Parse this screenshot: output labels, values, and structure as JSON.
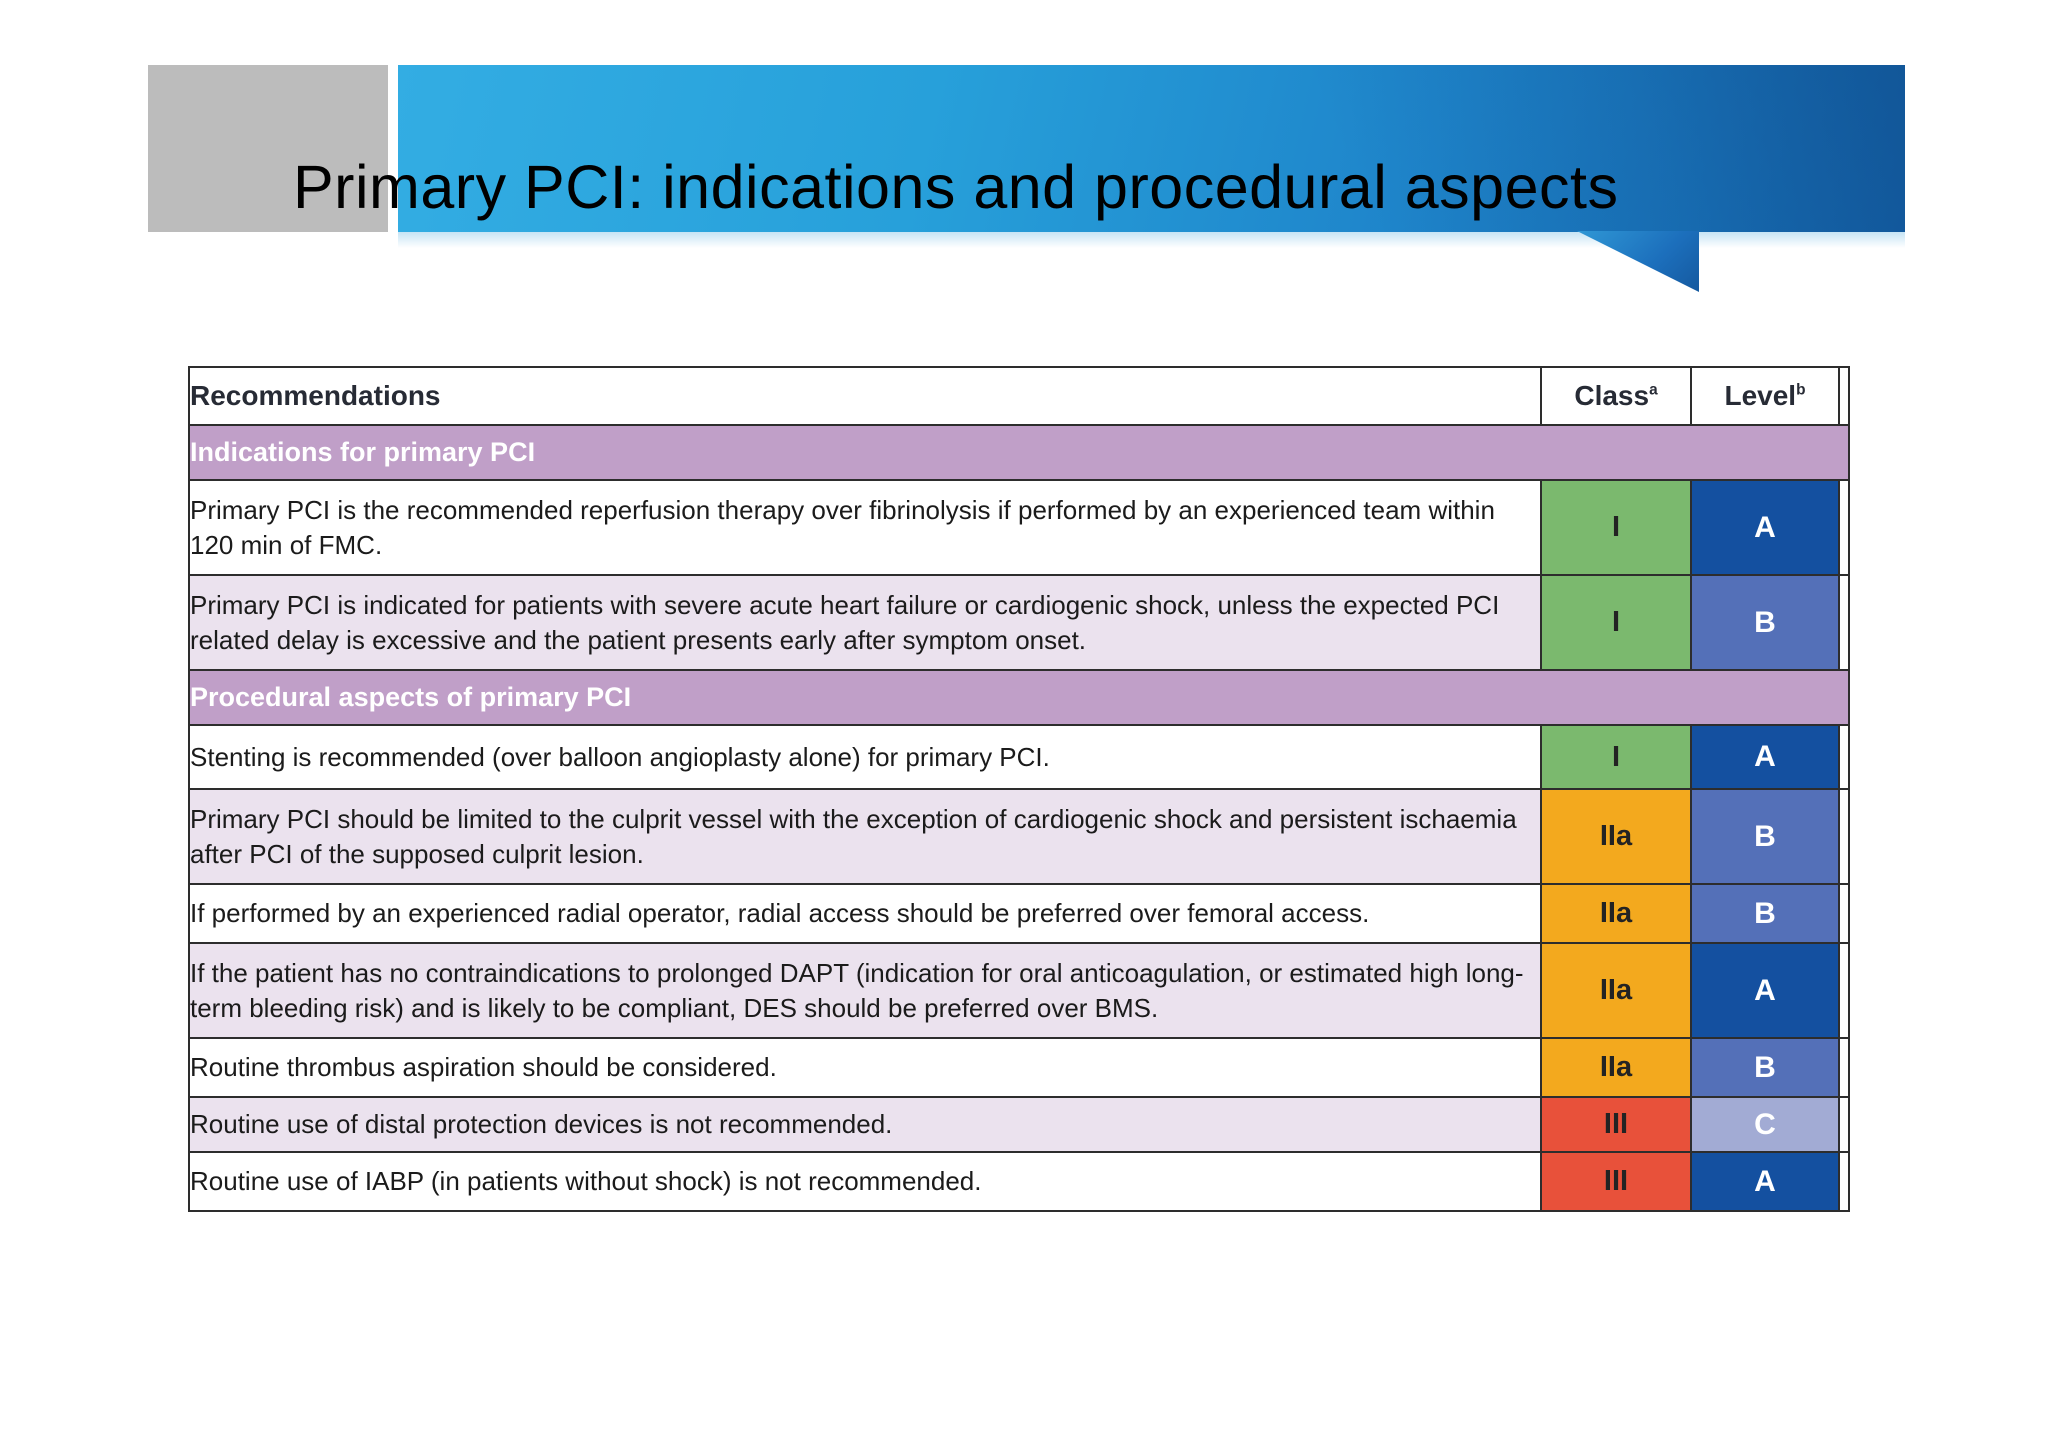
{
  "slide": {
    "title": "Primary PCI: indications and procedural aspects"
  },
  "table": {
    "header": {
      "recommendations": "Recommendations",
      "class_label": "Class",
      "class_superscript": "a",
      "level_label": "Level",
      "level_superscript": "b"
    },
    "rows": [
      {
        "type": "section",
        "label": "Indications for primary PCI"
      },
      {
        "type": "recommendation",
        "text": "Primary PCI is the recommended reperfusion therapy over fibrinolysis if performed by an experienced team within 120 min of FMC.",
        "class": "I",
        "level": "A"
      },
      {
        "type": "recommendation",
        "text": "Primary PCI is indicated for patients with severe acute heart failure or cardiogenic shock, unless the expected PCI related delay is excessive and the patient presents early after symptom onset.",
        "class": "I",
        "level": "B"
      },
      {
        "type": "section",
        "label": "Procedural aspects of primary PCI"
      },
      {
        "type": "recommendation",
        "text": "Stenting is recommended (over balloon angioplasty alone) for primary PCI.",
        "class": "I",
        "level": "A"
      },
      {
        "type": "recommendation",
        "text": "Primary PCI should be limited to the culprit vessel with the exception of cardiogenic shock and persistent ischaemia after PCI of the supposed culprit lesion.",
        "class": "IIa",
        "level": "B"
      },
      {
        "type": "recommendation",
        "text": "If performed by an experienced radial operator, radial access should be preferred over femoral access.",
        "class": "IIa",
        "level": "B"
      },
      {
        "type": "recommendation",
        "text": "If the patient has no contraindications to prolonged DAPT (indication for oral anticoagulation, or estimated high long-term bleeding risk) and is likely to be compliant, DES should be preferred over BMS.",
        "class": "IIa",
        "level": "A"
      },
      {
        "type": "recommendation",
        "text": "Routine thrombus aspiration should be considered.",
        "class": "IIa",
        "level": "B"
      },
      {
        "type": "recommendation",
        "text": "Routine use of distal protection devices is not recommended.",
        "class": "III",
        "level": "C"
      },
      {
        "type": "recommendation",
        "text": "Routine use of IABP (in patients without shock) is not recommended.",
        "class": "III",
        "level": "A"
      }
    ]
  },
  "colors": {
    "class_I_green": "#7bb96e",
    "class_IIa_orange": "#f3a91e",
    "class_III_red": "#e8513a",
    "level_A_dark_blue": "#1450a0",
    "level_B_medium_blue": "#5470b8",
    "level_C_light_blue": "#a2abd4",
    "section_band_purple": "#c09fc8",
    "row_alternate_lavender": "#ebe2ee",
    "banner_blue_left": "#33ade3",
    "banner_blue_right": "#1567b0",
    "banner_tail_blue": "#1c6fbc",
    "gray_block": "#bcbcbc",
    "table_border": "#2d2d2d"
  }
}
